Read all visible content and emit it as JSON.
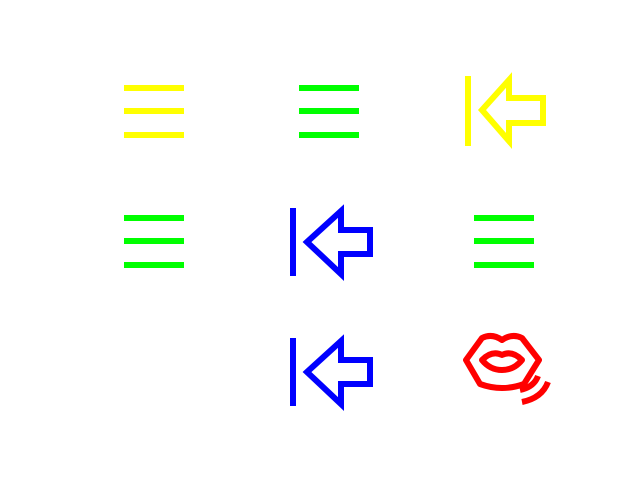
{
  "palette": {
    "yellow": "#ffff00",
    "green": "#00ff00",
    "blue": "#0000ff",
    "red": "#ff0000",
    "background": "#ffffff"
  },
  "icons": [
    {
      "name": "menu-icon",
      "color": "yellow"
    },
    {
      "name": "menu-icon",
      "color": "green"
    },
    {
      "name": "arrow-left-to-bar-icon",
      "color": "yellow"
    },
    {
      "name": "menu-icon",
      "color": "green"
    },
    {
      "name": "arrow-left-to-bar-icon",
      "color": "blue"
    },
    {
      "name": "menu-icon",
      "color": "green"
    },
    {
      "name": "arrow-left-to-bar-icon",
      "color": "blue"
    },
    {
      "name": "lips-sound-icon",
      "color": "red"
    }
  ]
}
